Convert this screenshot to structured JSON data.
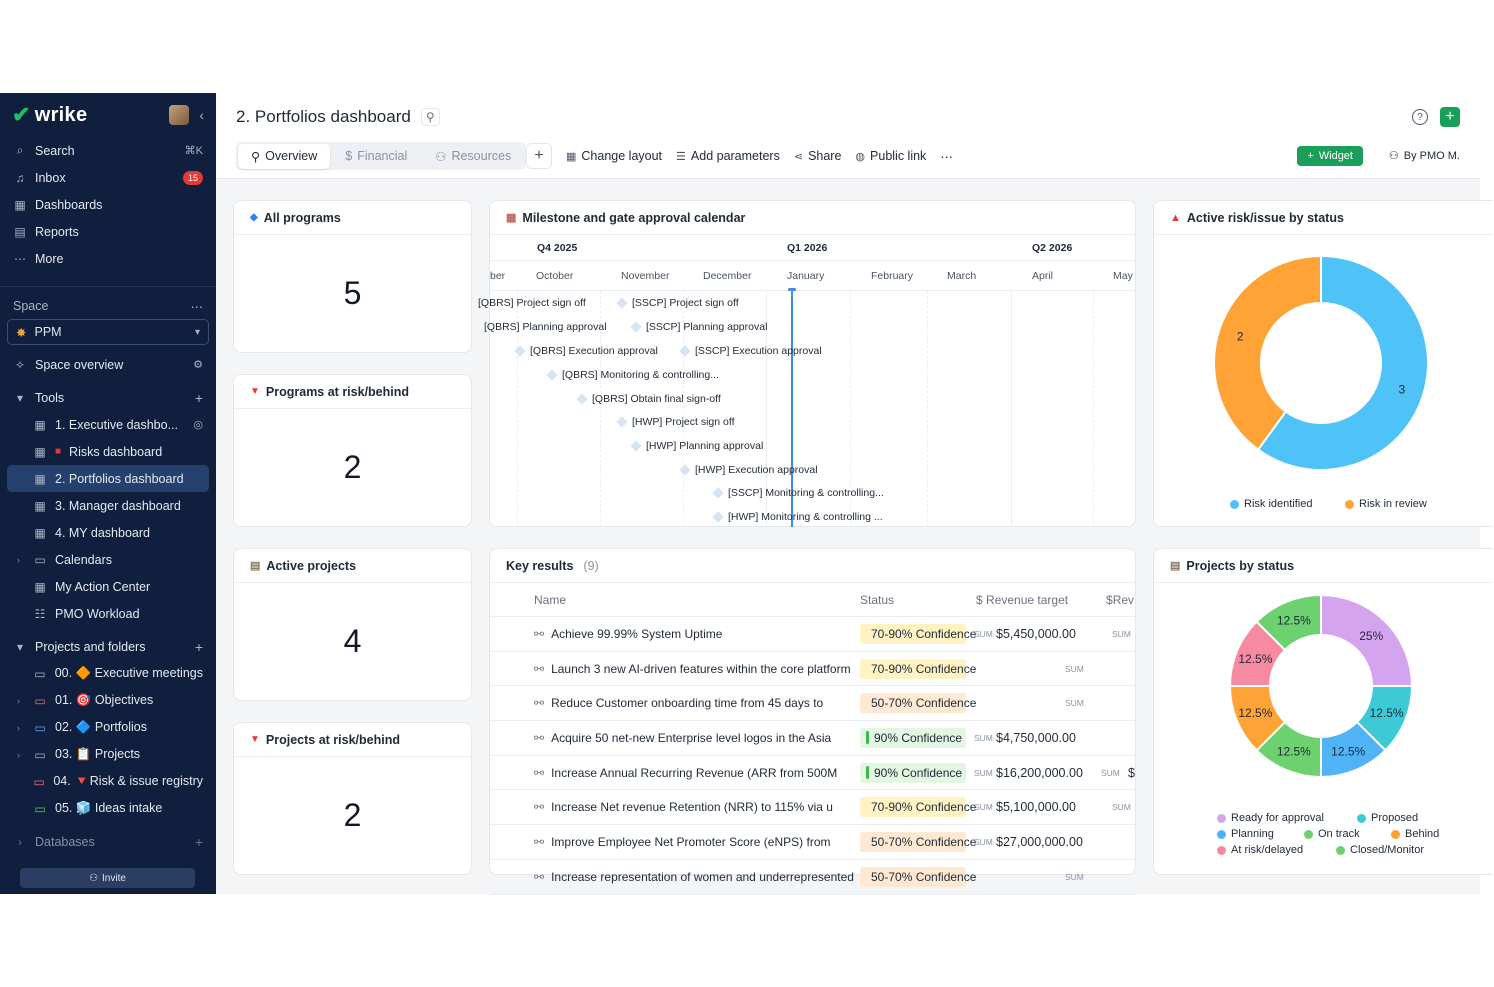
{
  "app": {
    "logo_text": "wrike"
  },
  "sidebar": {
    "nav": [
      {
        "label": "Search",
        "shortcut": "⌘K",
        "icon": "search-icon"
      },
      {
        "label": "Inbox",
        "badge": "15",
        "icon": "bell-icon"
      },
      {
        "label": "Dashboards",
        "icon": "dashboard-icon"
      },
      {
        "label": "Reports",
        "icon": "report-icon"
      },
      {
        "label": "More",
        "icon": "more-icon"
      }
    ],
    "space_label": "Space",
    "space_name": "PPM",
    "space_overview": "Space overview",
    "tools_label": "Tools",
    "tools": [
      {
        "label": "1. Executive dashbo..."
      },
      {
        "label": "Risks dashboard"
      },
      {
        "label": "2. Portfolios dashboard"
      },
      {
        "label": "3. Manager dashboard"
      },
      {
        "label": "4. MY dashboard"
      },
      {
        "label": "Calendars"
      },
      {
        "label": "My Action Center"
      },
      {
        "label": "PMO Workload"
      }
    ],
    "projects_label": "Projects and folders",
    "folders": [
      {
        "label": "00. 🔶 Executive meetings"
      },
      {
        "label": "01. 🎯 Objectives"
      },
      {
        "label": "02. 🔷 Portfolios"
      },
      {
        "label": "03. 📋 Projects"
      },
      {
        "label": "04. 🔻Risk & issue registry"
      },
      {
        "label": "05. 🧊 Ideas intake"
      }
    ],
    "databases_label": "Databases",
    "invite_label": "Invite"
  },
  "header": {
    "title": "2. Portfolios dashboard",
    "tabs": [
      "Overview",
      "Financial",
      "Resources"
    ],
    "toolbar": [
      "Change layout",
      "Add parameters",
      "Share",
      "Public link"
    ],
    "widget_label": "Widget",
    "by_label": "By PMO M."
  },
  "widgets": {
    "all_programs": {
      "title": "All programs",
      "value": "5"
    },
    "programs_risk": {
      "title": "Programs at risk/behind",
      "value": "2"
    },
    "active_projects": {
      "title": "Active projects",
      "value": "4"
    },
    "projects_risk": {
      "title": "Projects at risk/behind",
      "value": "2"
    },
    "milestone": {
      "title": "Milestone and gate approval calendar",
      "quarters": [
        "Q4 2025",
        "Q1 2026",
        "Q2 2026"
      ],
      "months": [
        "ber",
        "October",
        "November",
        "December",
        "January",
        "February",
        "March",
        "April",
        "May"
      ],
      "milestones": [
        "[QBRS] Project sign off",
        "[SSCP] Project sign off",
        "[QBRS] Planning approval",
        "[SSCP] Planning approval",
        "[QBRS] Execution approval",
        "[SSCP] Execution approval",
        "[QBRS] Monitoring & controlling...",
        "[QBRS] Obtain final sign-off",
        "[HWP] Project sign off",
        "[HWP] Planning approval",
        "[HWP] Execution approval",
        "[SSCP] Monitoring & controlling...",
        "[HWP] Monitoring & controlling ..."
      ]
    },
    "risk_status": {
      "title": "Active risk/issue by status",
      "slices": [
        {
          "label": "Risk identified",
          "value": 3,
          "color": "#4fc3f7"
        },
        {
          "label": "Risk in review",
          "value": 2,
          "color": "#ffa336"
        }
      ]
    },
    "key_results": {
      "title": "Key results",
      "count": "(9)",
      "columns": [
        "Name",
        "Status",
        "Revenue target",
        "Rev"
      ],
      "rows": [
        {
          "name": "Achieve 99.99% System Uptime",
          "status": "70-90% Confidence",
          "sum1": "SUM",
          "value": "$5,450,000.00",
          "sum2": "SUM",
          "extra": ""
        },
        {
          "name": "Launch 3 new AI-driven features within the core platform",
          "status": "70-90% Confidence",
          "sum1": "",
          "value": "",
          "sum2": "SUM",
          "extra": ""
        },
        {
          "name": "Reduce Customer onboarding time from 45 days to",
          "status": "50-70% Confidence",
          "sum1": "",
          "value": "",
          "sum2": "SUM",
          "extra": ""
        },
        {
          "name": "Acquire 50 net-new Enterprise level logos in the Asia",
          "status": "90% Confidence",
          "sum1": "SUM",
          "value": "$4,750,000.00",
          "sum2": "",
          "extra": ""
        },
        {
          "name": "Increase Annual Recurring Revenue (ARR from 500M",
          "status": "90% Confidence",
          "sum1": "SUM",
          "value": "$16,200,000.00",
          "sum2": "SUM",
          "extra": "$"
        },
        {
          "name": "Increase Net revenue Retention (NRR) to 115% via u",
          "status": "70-90% Confidence",
          "sum1": "SUM",
          "value": "$5,100,000.00",
          "sum2": "SUM",
          "extra": ""
        },
        {
          "name": "Improve Employee Net Promoter Score (eNPS) from",
          "status": "50-70% Confidence",
          "sum1": "SUM",
          "value": "$27,000,000.00",
          "sum2": "",
          "extra": ""
        },
        {
          "name": "Increase representation of women and underrepresented",
          "status": "50-70% Confidence",
          "sum1": "",
          "value": "",
          "sum2": "SUM",
          "extra": ""
        }
      ]
    },
    "projects_status": {
      "title": "Projects by status",
      "slices": [
        {
          "label": "Ready for approval",
          "value": "25%",
          "color": "#d4a5ee"
        },
        {
          "label": "Proposed",
          "value": "12.5%",
          "color": "#3ccbd6"
        },
        {
          "label": "Planning",
          "value": "12.5%",
          "color": "#4fb3f6"
        },
        {
          "label": "On track",
          "value": "12.5%",
          "color": "#6dd16f"
        },
        {
          "label": "Behind",
          "value": "12.5%",
          "color": "#ffa336"
        },
        {
          "label": "At risk/delayed",
          "value": "12.5%",
          "color": "#f58aa0"
        },
        {
          "label": "Closed/Monitor",
          "value": "12.5%",
          "color": "#6dd16f"
        }
      ]
    }
  }
}
